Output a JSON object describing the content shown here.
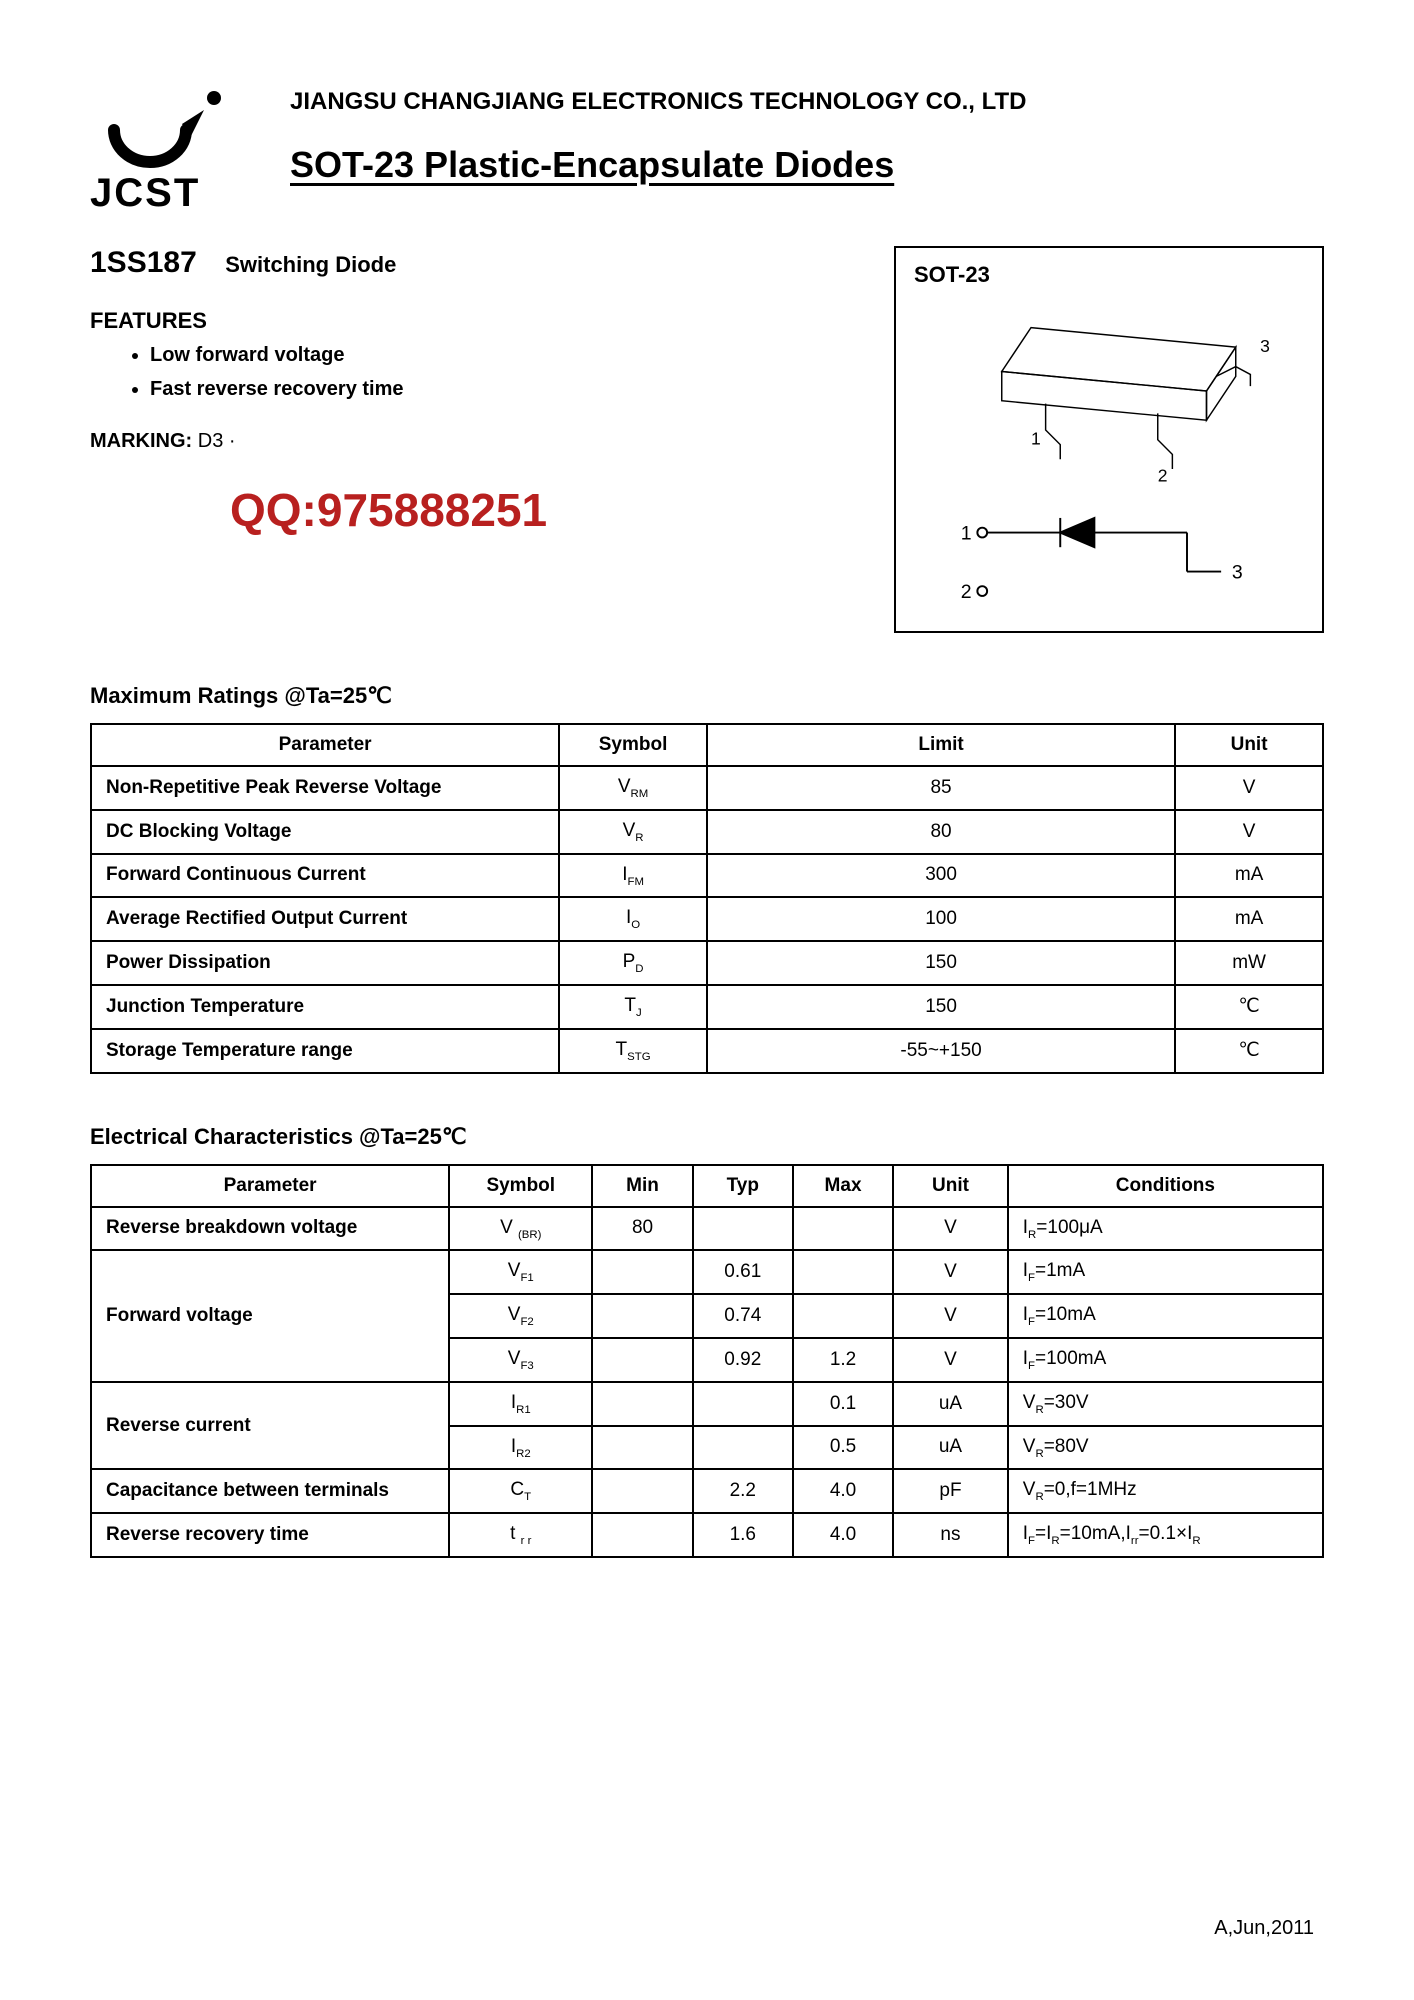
{
  "company": "JIANGSU CHANGJIANG ELECTRONICS TECHNOLOGY CO., LTD",
  "logo_text": "JCST",
  "doc_title": "SOT-23 Plastic-Encapsulate Diodes",
  "part_number": "1SS187",
  "part_desc": "Switching Diode",
  "features_heading": "FEATURES",
  "features": [
    "Low forward voltage",
    "Fast reverse recovery time"
  ],
  "marking_label": "MARKING:",
  "marking_value": "D3 ·",
  "watermark": "QQ:975888251",
  "package_label": "SOT-23",
  "package_pins": [
    "1",
    "2",
    "3"
  ],
  "ratings_title": "Maximum Ratings @Ta=25℃",
  "ratings_columns": [
    "Parameter",
    "Symbol",
    "Limit",
    "Unit"
  ],
  "ratings_rows": [
    {
      "param": "Non-Repetitive Peak Reverse Voltage",
      "sym": "V",
      "sub": "RM",
      "limit": "85",
      "unit": "V"
    },
    {
      "param": "DC Blocking  Voltage",
      "sym": "V",
      "sub": "R",
      "limit": "80",
      "unit": "V"
    },
    {
      "param": "Forward Continuous Current",
      "sym": "I",
      "sub": "FM",
      "limit": "300",
      "unit": "mA"
    },
    {
      "param": "Average Rectified Output Current",
      "sym": "I",
      "sub": "O",
      "limit": "100",
      "unit": "mA"
    },
    {
      "param": "Power Dissipation",
      "sym": "P",
      "sub": "D",
      "limit": "150",
      "unit": "mW"
    },
    {
      "param": "Junction Temperature",
      "sym": "T",
      "sub": "J",
      "limit": "150",
      "unit": "℃"
    },
    {
      "param": "Storage Temperature range",
      "sym": "T",
      "sub": "STG",
      "limit": "-55~+150",
      "unit": "℃"
    }
  ],
  "elec_title": "Electrical Characteristics @Ta=25℃",
  "elec_columns": [
    "Parameter",
    "Symbol",
    "Min",
    "Typ",
    "Max",
    "Unit",
    "Conditions"
  ],
  "elec_rows": [
    {
      "param": "Reverse breakdown voltage",
      "rowspan": 1,
      "sym": "V ",
      "sub": "(BR)",
      "min": "80",
      "typ": "",
      "max": "",
      "unit": "V",
      "cond_pre": "I",
      "cond_sub": "R",
      "cond_post": "=100μA"
    },
    {
      "param": "Forward voltage",
      "rowspan": 3,
      "sym": "V",
      "sub": "F1",
      "min": "",
      "typ": "0.61",
      "max": "",
      "unit": "V",
      "cond_pre": "I",
      "cond_sub": "F",
      "cond_post": "=1mA"
    },
    {
      "sym": "V",
      "sub": "F2",
      "min": "",
      "typ": "0.74",
      "max": "",
      "unit": "V",
      "cond_pre": "I",
      "cond_sub": "F",
      "cond_post": "=10mA"
    },
    {
      "sym": "V",
      "sub": "F3",
      "min": "",
      "typ": "0.92",
      "max": "1.2",
      "unit": "V",
      "cond_pre": "I",
      "cond_sub": "F",
      "cond_post": "=100mA"
    },
    {
      "param": "Reverse current",
      "rowspan": 2,
      "sym": "I",
      "sub": "R1",
      "min": "",
      "typ": "",
      "max": "0.1",
      "unit": "uA",
      "cond_pre": "V",
      "cond_sub": "R",
      "cond_post": "=30V"
    },
    {
      "sym": "I",
      "sub": "R2",
      "min": "",
      "typ": "",
      "max": "0.5",
      "unit": "uA",
      "cond_pre": "V",
      "cond_sub": "R",
      "cond_post": "=80V"
    },
    {
      "param": "Capacitance between terminals",
      "rowspan": 1,
      "sym": "C",
      "sub": "T",
      "min": "",
      "typ": "2.2",
      "max": "4.0",
      "unit": "pF",
      "cond_pre": "V",
      "cond_sub": "R",
      "cond_post": "=0,f=1MHz"
    },
    {
      "param": "Reverse recovery time",
      "rowspan": 1,
      "sym": "t ",
      "sub": "r r",
      "min": "",
      "typ": "1.6",
      "max": "4.0",
      "unit": "ns",
      "cond_html": "I<span class=\"sub\">F</span>=I<span class=\"sub\">R</span>=10mA,I<span class=\"sub\">rr</span>=0.1×I<span class=\"sub\">R</span>"
    }
  ],
  "footer_rev": "A,Jun,2011",
  "colors": {
    "text": "#000000",
    "accent": "#b8201f",
    "border": "#000000",
    "background": "#ffffff"
  }
}
